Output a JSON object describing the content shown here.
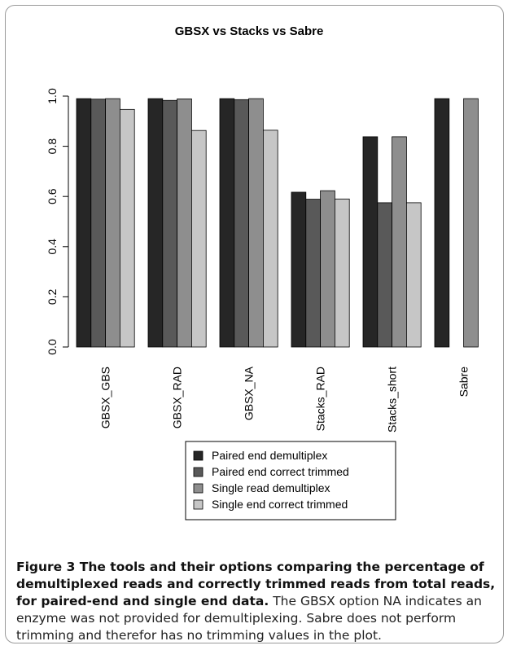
{
  "chart_data": {
    "type": "bar",
    "title": "GBSX vs Stacks vs Sabre",
    "xlabel": "",
    "ylabel": "",
    "ylim": [
      0,
      1.0
    ],
    "yticks": [
      "0.0",
      "0.2",
      "0.4",
      "0.6",
      "0.8",
      "1.0"
    ],
    "categories": [
      "GBSX_GBS",
      "GBSX_RAD",
      "GBSX_NA",
      "Stacks_RAD",
      "Stacks_short",
      "Sabre"
    ],
    "series": [
      {
        "name": "Paired end demultiplex",
        "color": "#262626",
        "values": [
          0.99,
          0.99,
          0.99,
          0.617,
          0.838,
          0.99
        ]
      },
      {
        "name": "Paired end correct trimmed",
        "color": "#595959",
        "values": [
          0.988,
          0.983,
          0.986,
          0.589,
          0.575,
          0.0
        ]
      },
      {
        "name": "Single read demultiplex",
        "color": "#8e8e8e",
        "values": [
          0.99,
          0.989,
          0.99,
          0.623,
          0.838,
          0.99
        ]
      },
      {
        "name": "Single end correct trimmed",
        "color": "#c6c6c6",
        "values": [
          0.947,
          0.863,
          0.864,
          0.59,
          0.575,
          null
        ]
      }
    ],
    "grid": false,
    "legend_position": "bottom-center"
  },
  "caption": {
    "title": "Figure 3 The tools and their options comparing the percentage of demultiplexed reads and correctly trimmed reads from total reads, for paired-end and single end data.",
    "body": "The GBSX option NA indicates an enzyme was not provided for demultiplexing. Sabre does not perform trimming and therefor has no trimming values in the plot."
  }
}
